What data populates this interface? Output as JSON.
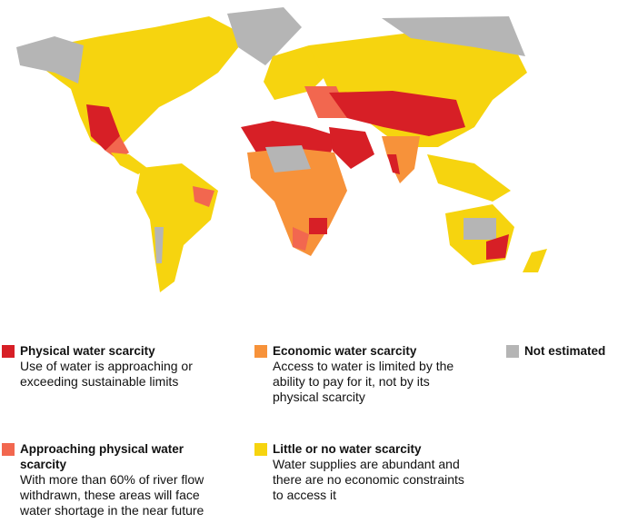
{
  "legend": {
    "items": [
      {
        "color": "#d71f26",
        "title_lines": [
          "Physical water scarcity"
        ],
        "description_lines": [
          "Use of water is approaching or",
          "exceeding sustainable limits"
        ]
      },
      {
        "color": "#f7923a",
        "title_lines": [
          "Economic water scarcity"
        ],
        "description_lines": [
          "Access to water is limited by the",
          "ability to pay for it, not by its",
          "physical scarcity"
        ]
      },
      {
        "color": "#b5b5b5",
        "title_lines": [
          "Not estimated"
        ],
        "description_lines": []
      },
      {
        "color": "#f2674f",
        "title_lines": [
          "Approaching physical water",
          "scarcity"
        ],
        "description_lines": [
          "With more than 60% of river flow",
          "withdrawn, these areas will face",
          "water shortage in the near future"
        ]
      },
      {
        "color": "#f6d40f",
        "title_lines": [
          "Little or no water scarcity"
        ],
        "description_lines": [
          "Water supplies are abundant and",
          "there are no economic constraints",
          "to access it"
        ]
      }
    ]
  }
}
